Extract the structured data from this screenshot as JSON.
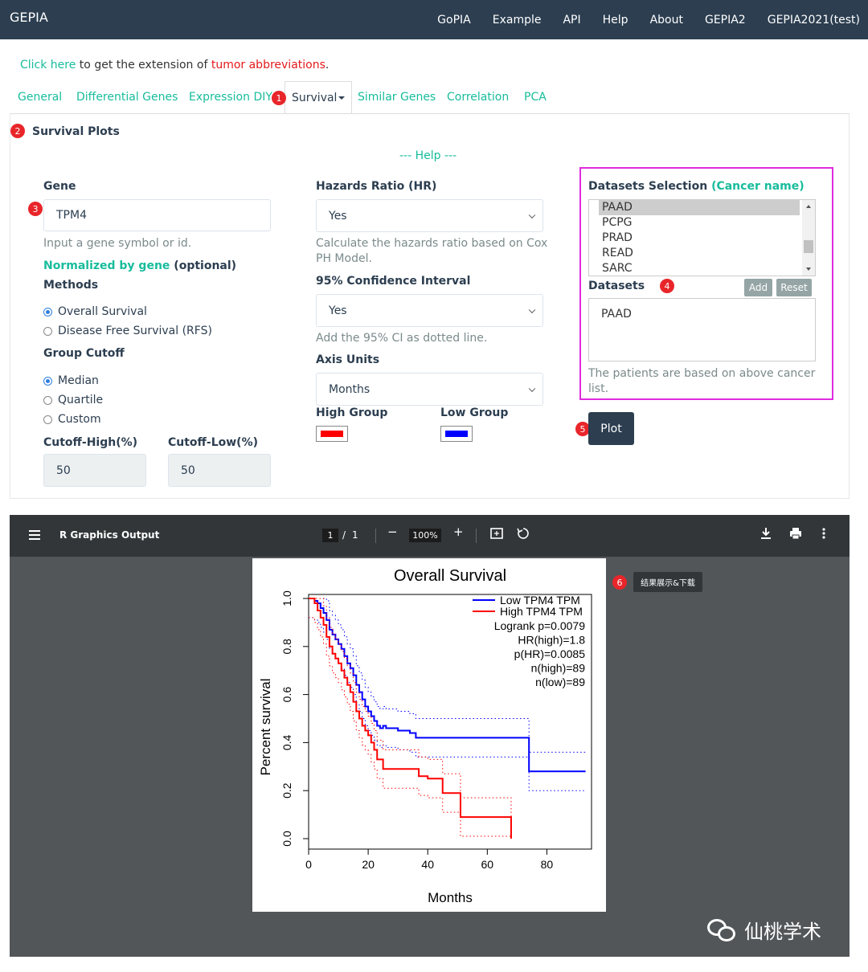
{
  "navbar": {
    "brand": "GEPIA",
    "links": [
      "GoPIA",
      "Example",
      "API",
      "Help",
      "About",
      "GEPIA2",
      "GEPIA2021(test)"
    ]
  },
  "notice": {
    "link": "Click here",
    "middle": " to get the extension of ",
    "red": "tumor abbreviations",
    "end": "."
  },
  "tabs": [
    "General",
    "Differential Genes",
    "Expression DIY",
    "Survival",
    "Similar Genes",
    "Correlation",
    "PCA"
  ],
  "badges": [
    "1",
    "2",
    "3",
    "4",
    "5",
    "6"
  ],
  "panel": {
    "title": "Survival Plots",
    "help": "--- Help ---"
  },
  "gene": {
    "label": "Gene",
    "value": "TPM4",
    "hint": "Input a gene symbol or id.",
    "normalized": "Normalized by gene",
    "optional": " (optional)"
  },
  "methods": {
    "label": "Methods",
    "options": [
      "Overall Survival",
      "Disease Free Survival (RFS)"
    ],
    "selected": 0
  },
  "cutoff": {
    "label": "Group Cutoff",
    "options": [
      "Median",
      "Quartile",
      "Custom"
    ],
    "selected": 0,
    "high_label": "Cutoff-High(%)",
    "high_value": "50",
    "low_label": "Cutoff-Low(%)",
    "low_value": "50"
  },
  "hr": {
    "label": "Hazards Ratio (HR)",
    "value": "Yes",
    "hint": "Calculate the hazards ratio based on Cox PH Model."
  },
  "ci": {
    "label": "95% Confidence Interval",
    "value": "Yes",
    "hint": "Add the 95% CI as dotted line."
  },
  "axis": {
    "label": "Axis Units",
    "value": "Months"
  },
  "groups": {
    "high_label": "High Group",
    "high_color": "#ff0000",
    "low_label": "Low Group",
    "low_color": "#0000ff"
  },
  "datasets": {
    "selection_label": "Datasets Selection",
    "cancer_name": "(Cancer name)",
    "options": [
      "PAAD",
      "PCPG",
      "PRAD",
      "READ",
      "SARC"
    ],
    "selected": "PAAD",
    "label": "Datasets",
    "add": "Add",
    "reset": "Reset",
    "value": "PAAD",
    "hint": "The patients are based on above cancer list."
  },
  "plot_button": "Plot",
  "viewer": {
    "title": "R Graphics Output",
    "page": "1",
    "page_sep": "/",
    "total": "1",
    "zoom": "100%",
    "tip": "结果展示&下载"
  },
  "watermark": "仙桃学术",
  "chart_data": {
    "type": "line",
    "title": "Overall Survival",
    "xlabel": "Months",
    "ylabel": "Percent survival",
    "xlim": [
      0,
      95
    ],
    "ylim": [
      0,
      1
    ],
    "xticks": [
      "0",
      "20",
      "40",
      "60",
      "80"
    ],
    "yticks": [
      "0.0",
      "0.2",
      "0.4",
      "0.6",
      "0.8",
      "1.0"
    ],
    "legend": [
      "Low TPM4 TPM",
      "High TPM4 TPM"
    ],
    "stats": [
      "Logrank p=0.0079",
      "HR(high)=1.8",
      "p(HR)=0.0085",
      "n(high)=89",
      "n(low)=89"
    ],
    "series": [
      {
        "name": "Low TPM4 TPM",
        "color": "#0000ff",
        "x": [
          0,
          2,
          3,
          4,
          5,
          6,
          7,
          8,
          9,
          10,
          11,
          12,
          13,
          14,
          15,
          16,
          17,
          18,
          19,
          20,
          21,
          22,
          23,
          24,
          25,
          26,
          30,
          34,
          36,
          74,
          74,
          93
        ],
        "y": [
          1.0,
          0.99,
          0.98,
          0.96,
          0.94,
          0.91,
          0.87,
          0.85,
          0.83,
          0.81,
          0.79,
          0.76,
          0.73,
          0.71,
          0.68,
          0.64,
          0.61,
          0.58,
          0.55,
          0.53,
          0.51,
          0.49,
          0.47,
          0.46,
          0.47,
          0.46,
          0.45,
          0.44,
          0.42,
          0.42,
          0.28,
          0.28
        ]
      },
      {
        "name": "High TPM4 TPM",
        "color": "#ff0000",
        "x": [
          0,
          2,
          3,
          4,
          5,
          6,
          7,
          8,
          9,
          10,
          11,
          12,
          13,
          14,
          15,
          16,
          17,
          18,
          19,
          20,
          21,
          22,
          23,
          25,
          30,
          37,
          40,
          45,
          51,
          68
        ],
        "y": [
          1.0,
          0.98,
          0.95,
          0.92,
          0.89,
          0.84,
          0.8,
          0.77,
          0.75,
          0.73,
          0.7,
          0.67,
          0.64,
          0.61,
          0.57,
          0.53,
          0.5,
          0.47,
          0.45,
          0.43,
          0.4,
          0.37,
          0.33,
          0.29,
          0.29,
          0.26,
          0.25,
          0.19,
          0.09,
          0.0
        ]
      }
    ]
  }
}
